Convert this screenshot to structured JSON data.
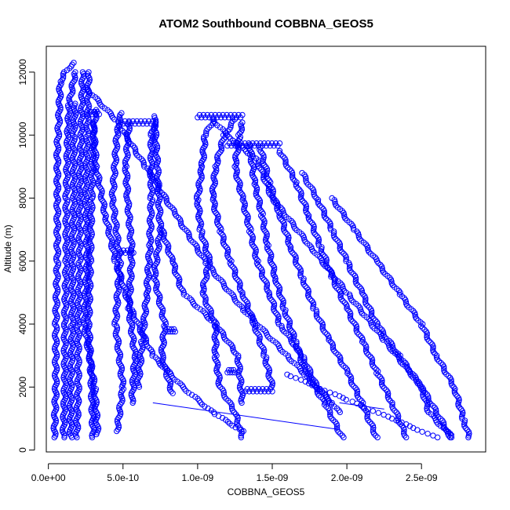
{
  "chart_data": {
    "type": "scatter",
    "title": "ATOM2 Southbound COBBNA_GEOS5",
    "xlabel": "COBBNA_GEOS5",
    "ylabel": "Altitude (m)",
    "xlim": [
      -1.4e-11,
      2.93e-09
    ],
    "ylim": [
      -60,
      12820
    ],
    "x_ticks": [
      {
        "value": 0,
        "label": "0.0e+00"
      },
      {
        "value": 5e-10,
        "label": "5.0e-10"
      },
      {
        "value": 1e-09,
        "label": "1.0e-09"
      },
      {
        "value": 1.5e-09,
        "label": "1.5e-09"
      },
      {
        "value": 2e-09,
        "label": "2.0e-09"
      },
      {
        "value": 2.5e-09,
        "label": "2.5e-09"
      }
    ],
    "y_ticks": [
      {
        "value": 0,
        "label": "0"
      },
      {
        "value": 2000,
        "label": "2000"
      },
      {
        "value": 4000,
        "label": "4000"
      },
      {
        "value": 6000,
        "label": "6000"
      },
      {
        "value": 8000,
        "label": "8000"
      },
      {
        "value": 10000,
        "label": "10000"
      },
      {
        "value": 12000,
        "label": "12000"
      }
    ],
    "marker": "open-circle",
    "color": "#0000ff",
    "grid": false,
    "legend": "none",
    "profiles": [
      {
        "alt": [
          400,
          2000,
          4000,
          6000,
          8000,
          9600,
          10400,
          11700,
          12000,
          12300
        ],
        "x": [
          4e-11,
          5e-11,
          5e-11,
          6e-11,
          6e-11,
          6e-11,
          7e-11,
          8e-11,
          1.1e-10,
          1.7e-10
        ]
      },
      {
        "alt": [
          400,
          2000,
          4000,
          6000,
          8000,
          10000,
          11000,
          12000
        ],
        "x": [
          1e-10,
          1.1e-10,
          1.1e-10,
          1.2e-10,
          1.2e-10,
          1.3e-10,
          1.4e-10,
          1.8e-10
        ]
      },
      {
        "alt": [
          400,
          2000,
          4000,
          6000,
          8000,
          10000,
          11000
        ],
        "x": [
          1.5e-10,
          1.5e-10,
          1.6e-10,
          1.6e-10,
          1.7e-10,
          1.7e-10,
          1.8e-10
        ]
      },
      {
        "alt": [
          400,
          2000,
          4000,
          6000,
          8000,
          10000,
          12000
        ],
        "x": [
          1.9e-10,
          2e-10,
          2e-10,
          2.1e-10,
          2.1e-10,
          2.2e-10,
          2.3e-10
        ]
      },
      {
        "alt": [
          400,
          2000,
          4000,
          6000,
          8000,
          10000,
          10800
        ],
        "x": [
          3e-10,
          2.9e-10,
          2.7e-10,
          2.8e-10,
          2.9e-10,
          3e-10,
          3.2e-10
        ]
      },
      {
        "alt": [
          500,
          2000,
          4000,
          6000,
          8000,
          10000,
          12000
        ],
        "x": [
          3.3e-10,
          3.1e-10,
          2.4e-10,
          2.6e-10,
          2.5e-10,
          2.6e-10,
          2.7e-10
        ]
      },
      {
        "alt": [
          600,
          2000,
          4000,
          6000,
          8000,
          10000,
          10700
        ],
        "x": [
          4.6e-10,
          5e-10,
          4.5e-10,
          4.8e-10,
          4.3e-10,
          4.6e-10,
          4.9e-10
        ]
      },
      {
        "alt": [
          1500,
          3000,
          4500,
          6300,
          8000,
          9000,
          10400
        ],
        "x": [
          5.6e-10,
          5.8e-10,
          5.4e-10,
          5.6e-10,
          5.3e-10,
          5.2e-10,
          5.4e-10
        ]
      },
      {
        "alt": [
          2000,
          3500,
          5000,
          6500,
          8000,
          10000,
          10400
        ],
        "x": [
          6e-10,
          6.3e-10,
          6.6e-10,
          6.8e-10,
          6.9e-10,
          6.9e-10,
          7.2e-10
        ]
      },
      {
        "alt": [
          1800,
          3000,
          4000,
          5500,
          7000,
          9000,
          10600
        ],
        "x": [
          8.3e-10,
          7.6e-10,
          7.8e-10,
          7.1e-10,
          7.5e-10,
          7.3e-10,
          7.1e-10
        ]
      },
      {
        "alt": [
          1500,
          3000,
          4000,
          5000,
          6000,
          7000
        ],
        "x": [
          1.3e-09,
          1.27e-09,
          1.12e-09,
          9e-10,
          8.3e-10,
          7.6e-10
        ]
      },
      {
        "alt": [
          400,
          1200,
          2000,
          3000,
          4000,
          5000,
          6000,
          7000,
          8000,
          9000,
          10000,
          10500
        ],
        "x": [
          1.3e-09,
          1.25e-09,
          1.15e-09,
          1.12e-09,
          1.12e-09,
          1.03e-09,
          1.08e-09,
          1.02e-09,
          1e-09,
          1.03e-09,
          1.05e-09,
          1.11e-09
        ]
      },
      {
        "alt": [
          2000,
          3000,
          4000,
          5000,
          6000,
          7000,
          8000,
          9000,
          10000,
          10500
        ],
        "x": [
          1.5e-09,
          1.45e-09,
          1.38e-09,
          1.3e-09,
          1.22e-09,
          1.15e-09,
          1.1e-09,
          1.12e-09,
          1.18e-09,
          1.25e-09
        ]
      },
      {
        "alt": [
          1200,
          2000,
          3000,
          4000,
          5000,
          6000,
          7000,
          8000,
          9000,
          10000,
          10400
        ],
        "x": [
          1.95e-09,
          1.8e-09,
          1.7e-09,
          1.55e-09,
          1.48e-09,
          1.4e-09,
          1.35e-09,
          1.3e-09,
          1.25e-09,
          1.28e-09,
          1.3e-09
        ]
      },
      {
        "alt": [
          400,
          1500,
          2500,
          3500,
          4500,
          5500,
          6500,
          7500,
          8500,
          9700
        ],
        "x": [
          1.97e-09,
          1.85e-09,
          1.72e-09,
          1.65e-09,
          1.58e-09,
          1.52e-09,
          1.47e-09,
          1.43e-09,
          1.38e-09,
          1.35e-09
        ]
      },
      {
        "alt": [
          400,
          1500,
          2500,
          3500,
          4500,
          5500,
          6500,
          7500,
          8500,
          9600
        ],
        "x": [
          2.2e-09,
          2.1e-09,
          2e-09,
          1.88e-09,
          1.78e-09,
          1.7e-09,
          1.62e-09,
          1.55e-09,
          1.48e-09,
          1.42e-09
        ]
      },
      {
        "alt": [
          400,
          1500,
          2500,
          3500,
          4500,
          5500,
          6500,
          7500,
          8500,
          9500
        ],
        "x": [
          2.4e-09,
          2.3e-09,
          2.2e-09,
          2.1e-09,
          2e-09,
          1.9e-09,
          1.82e-09,
          1.74e-09,
          1.66e-09,
          1.55e-09
        ]
      },
      {
        "alt": [
          400,
          1200,
          2000,
          3000,
          4000,
          5000,
          6000,
          7000,
          8000,
          8800
        ],
        "x": [
          2.7e-09,
          2.55e-09,
          2.5e-09,
          2.35e-09,
          2.2e-09,
          2.1e-09,
          2e-09,
          1.9e-09,
          1.8e-09,
          1.7e-09
        ]
      },
      {
        "alt": [
          400,
          1000,
          2000,
          3000,
          4000,
          5000,
          6000,
          7000,
          8000
        ],
        "x": [
          2.82e-09,
          2.78e-09,
          2.72e-09,
          2.6e-09,
          2.5e-09,
          2.35e-09,
          2.2e-09,
          2.05e-09,
          1.9e-09
        ]
      },
      {
        "alt": [
          400,
          2000,
          3500,
          5000,
          6500,
          8000,
          9200,
          9600,
          10000,
          10500
        ],
        "x": [
          2.7e-09,
          2.5e-09,
          2.25e-09,
          2e-09,
          1.75e-09,
          1.5e-09,
          1.4e-09,
          1.3e-09,
          1.2e-09,
          1.1e-09
        ]
      },
      {
        "alt": [
          400,
          1000,
          1600,
          2000,
          2400
        ],
        "x": [
          2.6e-09,
          2.3e-09,
          2e-09,
          1.8e-09,
          1.6e-09
        ]
      },
      {
        "alt": [
          600,
          1200,
          2000,
          3000,
          4500,
          6000,
          7500,
          9000,
          10400
        ],
        "x": [
          1.3e-09,
          1.1e-09,
          9e-10,
          7e-10,
          5.5e-10,
          4.5e-10,
          3.8e-10,
          3.2e-10,
          3e-10
        ]
      },
      {
        "alt": [
          1500,
          3000,
          4500,
          6000,
          7500,
          9000,
          10500,
          11500
        ],
        "x": [
          1.9e-09,
          1.6e-09,
          1.3e-09,
          1.05e-09,
          8.5e-10,
          6.5e-10,
          4.5e-10,
          2.5e-10
        ]
      }
    ],
    "horizontal_runs": [
      {
        "alt": 10600,
        "x": [
          1e-09,
          1.3e-09
        ]
      },
      {
        "alt": 10400,
        "x": [
          5e-10,
          7e-10
        ]
      },
      {
        "alt": 9700,
        "x": [
          1.2e-09,
          1.55e-09
        ]
      },
      {
        "alt": 10700,
        "x": [
          2.7e-10,
          3.4e-10
        ]
      },
      {
        "alt": 1900,
        "x": [
          1.32e-09,
          1.5e-09
        ]
      },
      {
        "alt": 2500,
        "x": [
          1.2e-09,
          1.25e-09
        ]
      },
      {
        "alt": 3800,
        "x": [
          8e-10,
          8.5e-10
        ]
      },
      {
        "alt": 6300,
        "x": [
          4.9e-10,
          5.7e-10
        ]
      }
    ],
    "connector_lines": [
      {
        "x": [
          7e-10,
          1.95e-09
        ],
        "alt": [
          1500,
          650
        ]
      },
      {
        "x": [
          1.95e-09,
          2.25e-09
        ],
        "alt": [
          1500,
          1300
        ]
      },
      {
        "x": [
          2.6e-09,
          2.72e-09
        ],
        "alt": [
          900,
          500
        ]
      }
    ]
  }
}
